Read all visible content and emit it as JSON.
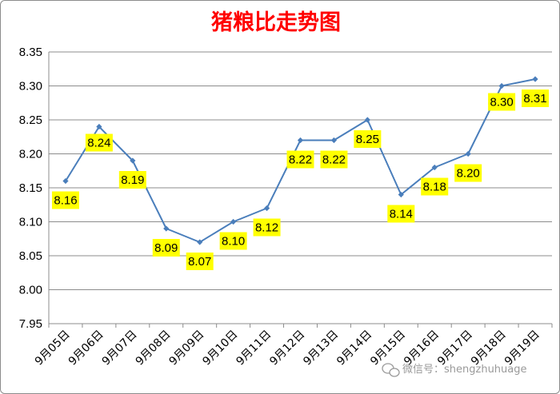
{
  "chart_data": {
    "type": "line",
    "title": "猪粮比走势图",
    "categories": [
      "9月05日",
      "9月06日",
      "9月07日",
      "9月08日",
      "9月09日",
      "9月10日",
      "9月11日",
      "9月12日",
      "9月13日",
      "9月14日",
      "9月15日",
      "9月16日",
      "9月17日",
      "9月18日",
      "9月19日"
    ],
    "series": [
      {
        "values": [
          8.16,
          8.24,
          8.19,
          8.09,
          8.07,
          8.1,
          8.12,
          8.22,
          8.22,
          8.25,
          8.14,
          8.18,
          8.2,
          8.3,
          8.31
        ]
      }
    ],
    "data_labels": [
      "8.16",
      "8.24",
      "8.19",
      "8.09",
      "8.07",
      "8.10",
      "8.12",
      "8.22",
      "8.22",
      "8.25",
      "8.14",
      "8.18",
      "8.20",
      "8.30",
      "8.31"
    ],
    "ylim": [
      7.95,
      8.35
    ],
    "yticks": [
      "7.95",
      "8.00",
      "8.05",
      "8.10",
      "8.15",
      "8.20",
      "8.25",
      "8.30",
      "8.35"
    ],
    "grid": true,
    "legend": "none"
  },
  "watermark": "微信号：shengzhuhuage",
  "colors": {
    "title": "#ff0000",
    "line": "#4a7ebb",
    "label_bg": "#ffff00",
    "grid": "#8c8c8c"
  }
}
